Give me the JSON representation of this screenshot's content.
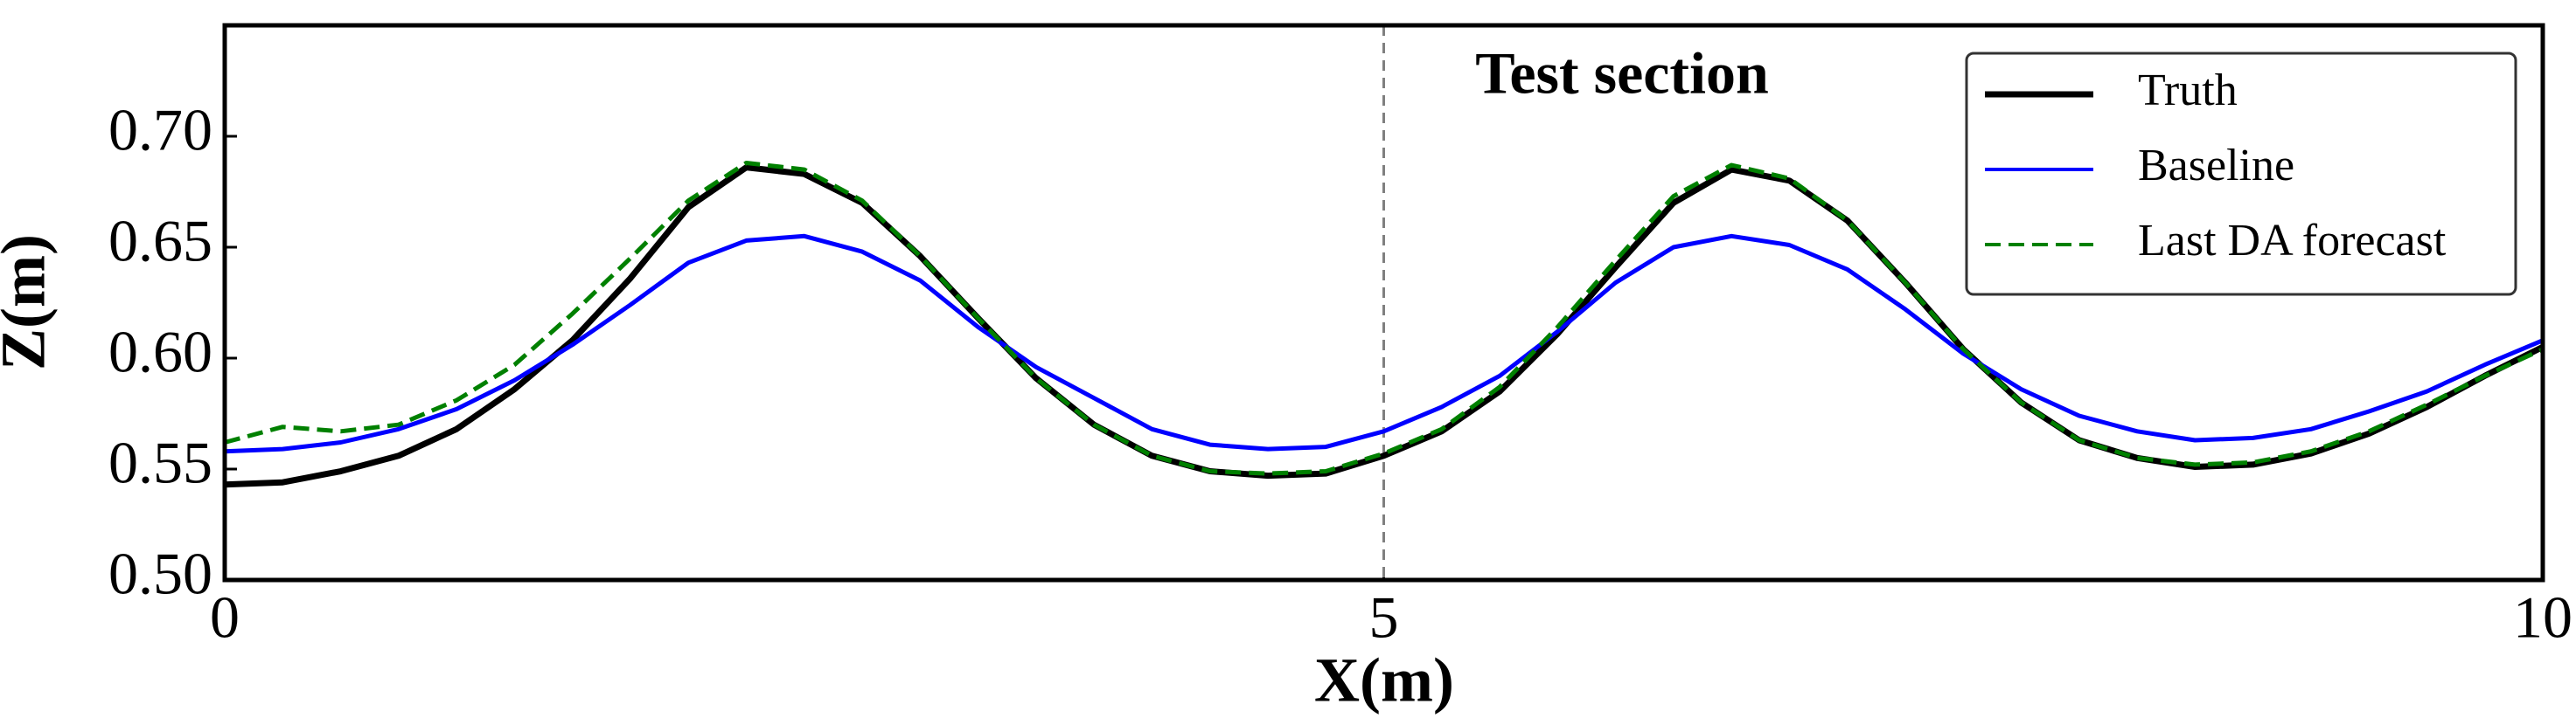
{
  "chart_data": {
    "type": "line",
    "xlabel": "X(m)",
    "ylabel": "Z(m)",
    "annotation": "Test section",
    "annotation_line_x": 5,
    "x": [
      0,
      0.25,
      0.5,
      0.75,
      1,
      1.25,
      1.5,
      1.75,
      2,
      2.25,
      2.5,
      2.75,
      3,
      3.25,
      3.5,
      3.75,
      4,
      4.25,
      4.5,
      4.75,
      5,
      5.25,
      5.5,
      5.75,
      6,
      6.25,
      6.5,
      6.75,
      7,
      7.25,
      7.5,
      7.75,
      8,
      8.25,
      8.5,
      8.75,
      9,
      9.25,
      9.5,
      9.75,
      10
    ],
    "series": [
      {
        "name": "Truth",
        "color": "#000000",
        "style": "solid",
        "values": [
          0.543,
          0.544,
          0.549,
          0.556,
          0.568,
          0.586,
          0.608,
          0.636,
          0.668,
          0.686,
          0.683,
          0.67,
          0.646,
          0.618,
          0.591,
          0.57,
          0.556,
          0.549,
          0.547,
          0.548,
          0.556,
          0.567,
          0.585,
          0.611,
          0.641,
          0.67,
          0.685,
          0.68,
          0.662,
          0.634,
          0.604,
          0.58,
          0.563,
          0.555,
          0.551,
          0.552,
          0.557,
          0.566,
          0.578,
          0.592,
          0.605
        ]
      },
      {
        "name": "Baseline",
        "color": "#0000ff",
        "style": "solid",
        "values": [
          0.558,
          0.559,
          0.562,
          0.568,
          0.577,
          0.59,
          0.606,
          0.624,
          0.643,
          0.653,
          0.655,
          0.648,
          0.635,
          0.614,
          0.596,
          0.582,
          0.568,
          0.561,
          0.559,
          0.56,
          0.567,
          0.578,
          0.592,
          0.612,
          0.634,
          0.65,
          0.655,
          0.651,
          0.64,
          0.622,
          0.602,
          0.586,
          0.574,
          0.567,
          0.563,
          0.564,
          0.568,
          0.576,
          0.585,
          0.597,
          0.608
        ]
      },
      {
        "name": "Last DA forecast",
        "color": "#008000",
        "style": "dashed",
        "values": [
          0.562,
          0.569,
          0.567,
          0.57,
          0.581,
          0.597,
          0.62,
          0.645,
          0.671,
          0.688,
          0.685,
          0.671,
          0.646,
          0.618,
          0.591,
          0.57,
          0.556,
          0.549,
          0.548,
          0.549,
          0.557,
          0.568,
          0.587,
          0.614,
          0.644,
          0.673,
          0.687,
          0.681,
          0.662,
          0.634,
          0.604,
          0.58,
          0.563,
          0.555,
          0.552,
          0.553,
          0.558,
          0.567,
          0.579,
          0.592,
          0.604
        ]
      }
    ],
    "xlim": [
      0,
      10
    ],
    "xticks": [
      0,
      5,
      10
    ],
    "ylim": [
      0.5,
      0.75
    ],
    "yticks": [
      {
        "value": 0.5,
        "label": "0.50"
      },
      {
        "value": 0.55,
        "label": "0.55"
      },
      {
        "value": 0.6,
        "label": "0.60"
      },
      {
        "value": 0.65,
        "label": "0.65"
      },
      {
        "value": 0.7,
        "label": "0.70"
      }
    ],
    "legend": "upper right",
    "grid": false
  }
}
